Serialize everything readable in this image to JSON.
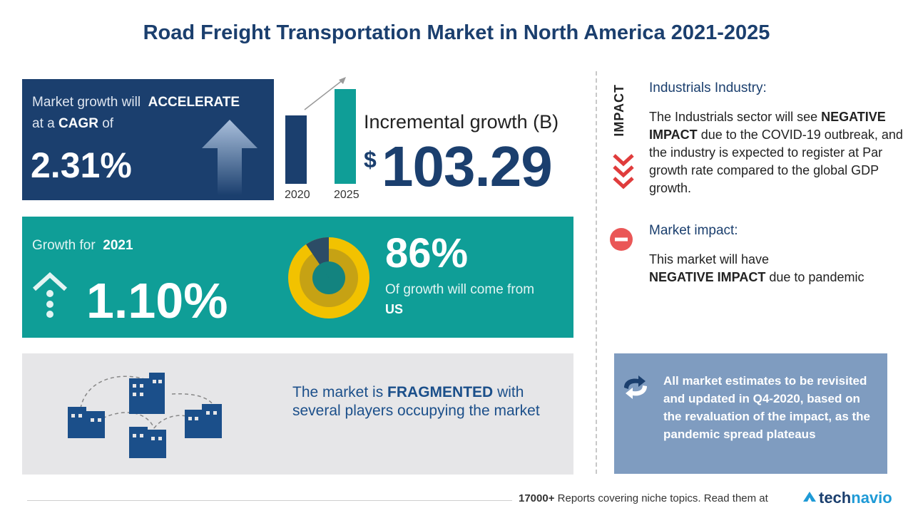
{
  "title": "Road Freight Transportation Market in North America 2021-2025",
  "cagr_card": {
    "line1_prefix": "Market growth will",
    "line1_bold": "ACCELERATE",
    "line2_prefix": "at a",
    "line2_bold": "CAGR",
    "line2_suffix": "of",
    "value": "2.31%"
  },
  "incremental": {
    "bar_left_label": "2020",
    "bar_right_label": "2025",
    "label": "Incremental growth (B)",
    "currency": "$",
    "value": "103.29"
  },
  "growth_card": {
    "label_prefix": "Growth for",
    "label_year": "2021",
    "value": "1.10%",
    "share_value": "86%",
    "share_text": "Of growth will come from",
    "share_region": "US"
  },
  "fragmented": {
    "prefix": "The market is",
    "bold": "FRAGMENTED",
    "rest": "with several players occupying the market"
  },
  "impact_vertical": "IMPACT",
  "industry": {
    "title": "Industrials Industry:",
    "t1": "The Industrials sector will see",
    "bold": "NEGATIVE IMPACT",
    "t2": "due to the COVID-19 outbreak, and the industry is expected to register at Par growth rate compared to the global GDP growth."
  },
  "market_impact": {
    "title": "Market impact:",
    "t1": "This market will have",
    "bold": "NEGATIVE IMPACT",
    "t2": "due to pandemic"
  },
  "note": "All market estimates to be revisited and updated in Q4-2020, based on the revaluation of the impact, as the pandemic spread plateaus",
  "footer": {
    "bold": "17000+",
    "text": "Reports covering niche topics. Read them at"
  },
  "brand": {
    "part1": "tech",
    "part2": "navio"
  },
  "icons": [
    "arrow-up-icon",
    "trend-arrow-icon",
    "up-dots-icon",
    "donut-icon",
    "buildings-icon",
    "triple-chevron-down-icon",
    "minus-circle-icon",
    "refresh-icon",
    "technavio-logo-icon"
  ],
  "colors": {
    "navy": "#1b3f6e",
    "teal": "#0f9e97",
    "gold": "#f2c200",
    "red": "#e84545",
    "note_bg": "#7f9cc0"
  }
}
